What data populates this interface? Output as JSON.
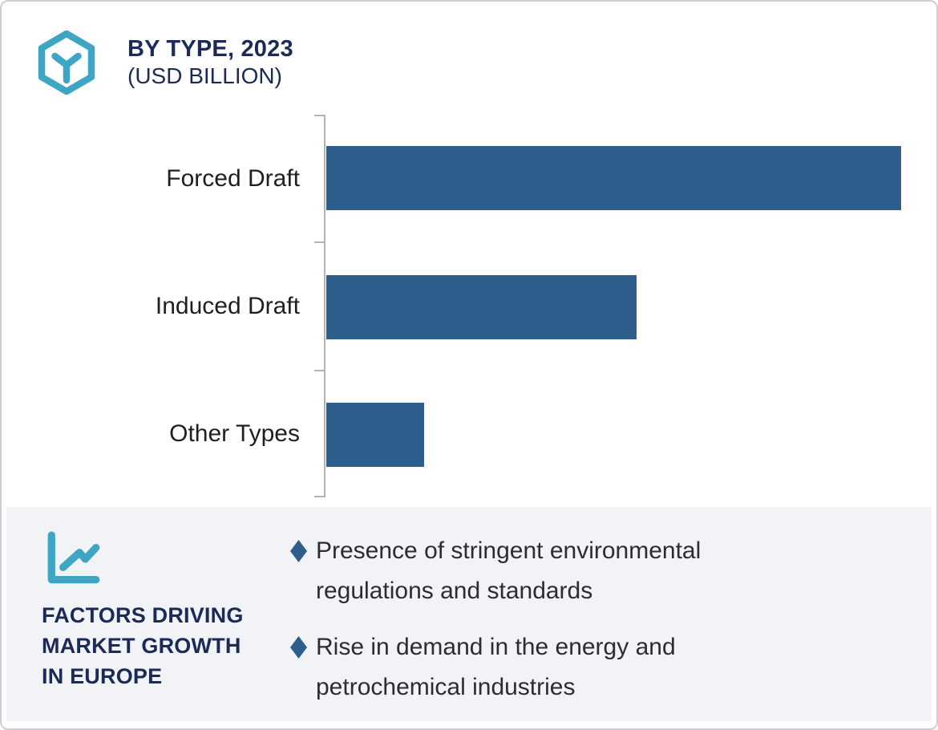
{
  "header": {
    "title_line1": "BY TYPE, 2023",
    "title_line2": "(USD BILLION)"
  },
  "chart_data": {
    "type": "bar",
    "orientation": "horizontal",
    "title": "BY TYPE, 2023 (USD BILLION)",
    "xlabel": "",
    "ylabel": "",
    "unit": "USD Billion",
    "categories": [
      "Forced Draft",
      "Induced Draft",
      "Other Types"
    ],
    "values": [
      1.0,
      0.54,
      0.17
    ],
    "values_note": "No numeric axis labels are visible; values are relative bar lengths normalized to the longest bar.",
    "legend": "none",
    "grid": "off",
    "value_labels_visible": false,
    "bar_color": "#2d5e8c"
  },
  "factors": {
    "heading_lines": [
      "FACTORS DRIVING",
      "MARKET GROWTH",
      "IN EUROPE"
    ],
    "items": [
      {
        "text": "Presence of stringent environmental regulations and standards"
      },
      {
        "text": "Rise in demand in the energy and petrochemical industries"
      }
    ]
  },
  "colors": {
    "bar_blue": "#2d5e8c",
    "accent_teal": "#3ea6c4",
    "navy_text": "#1b2a56",
    "panel_bg": "#f1f3f7",
    "body_text": "#2d2d2d",
    "axis_gray": "#b3b3b6",
    "card_border": "#cdced6"
  }
}
